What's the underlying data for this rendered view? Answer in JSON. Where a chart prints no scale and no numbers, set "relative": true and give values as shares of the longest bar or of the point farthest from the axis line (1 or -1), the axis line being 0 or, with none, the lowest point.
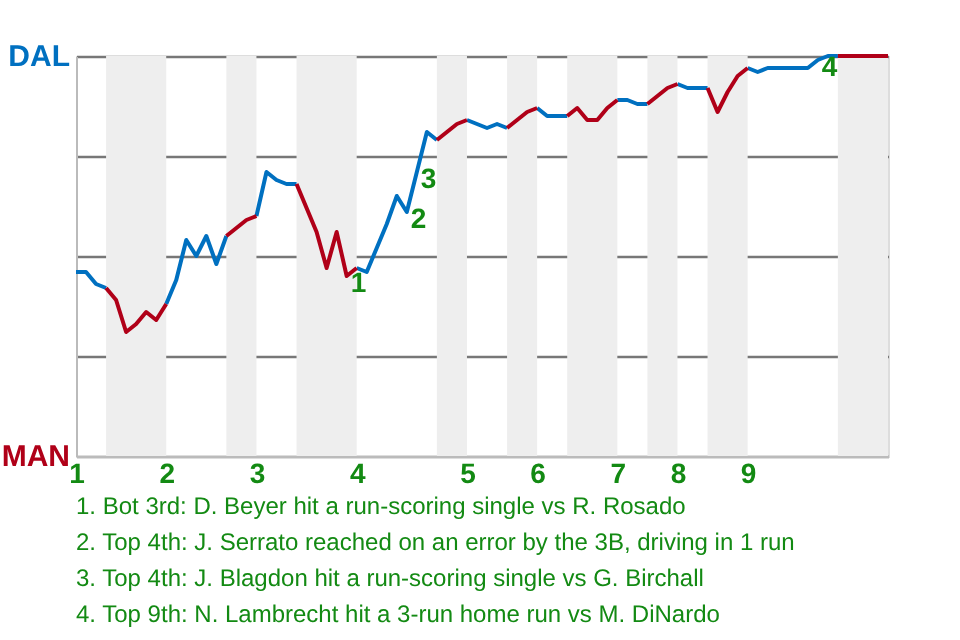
{
  "chart_data": {
    "type": "line",
    "relative": true,
    "categories": [
      "1",
      null,
      null,
      null,
      null,
      null,
      null,
      null,
      null,
      "2",
      null,
      null,
      null,
      null,
      null,
      null,
      null,
      null,
      "3",
      null,
      null,
      null,
      null,
      null,
      null,
      null,
      null,
      null,
      "4",
      null,
      null,
      null,
      null,
      null,
      null,
      null,
      null,
      null,
      null,
      "5",
      null,
      null,
      null,
      null,
      null,
      null,
      "6",
      null,
      null,
      null,
      null,
      null,
      null,
      null,
      "7",
      null,
      null,
      null,
      null,
      null,
      "8",
      null,
      null,
      null,
      null,
      null,
      null,
      "9",
      null,
      null,
      null,
      null,
      null,
      null,
      null,
      null,
      null,
      null,
      null,
      null,
      null,
      null
    ],
    "series": [
      {
        "color": "#0070c0",
        "values": [
          0.46,
          0.46,
          0.43,
          0.42,
          null,
          null,
          null,
          null,
          null,
          0.38,
          0.44,
          0.54,
          0.5,
          0.55,
          0.48,
          0.55,
          null,
          null,
          0.6,
          0.71,
          0.69,
          0.68,
          0.68,
          null,
          null,
          null,
          null,
          null,
          0.47,
          0.46,
          0.52,
          0.58,
          0.65,
          0.61,
          0.71,
          0.81,
          0.79,
          null,
          null,
          0.84,
          0.83,
          0.82,
          0.83,
          0.82,
          null,
          null,
          0.87,
          0.85,
          0.85,
          0.85,
          null,
          null,
          null,
          null,
          0.89,
          0.89,
          0.88,
          0.88,
          null,
          null,
          0.93,
          0.92,
          0.92,
          0.92,
          null,
          null,
          null,
          0.97,
          0.96,
          0.97,
          0.97,
          0.97,
          0.97,
          0.97,
          0.99,
          1,
          1,
          null,
          null,
          null,
          null,
          null
        ]
      },
      {
        "color": "#b00018",
        "values": [
          null,
          null,
          null,
          0.42,
          0.39,
          0.31,
          0.33,
          0.36,
          0.34,
          0.38,
          null,
          null,
          null,
          null,
          null,
          0.55,
          0.57,
          0.59,
          0.6,
          null,
          null,
          null,
          0.68,
          0.62,
          0.56,
          0.47,
          0.56,
          0.45,
          0.47,
          null,
          null,
          null,
          null,
          null,
          null,
          null,
          0.79,
          0.81,
          0.83,
          0.84,
          null,
          null,
          null,
          0.82,
          0.84,
          0.86,
          0.87,
          null,
          null,
          0.85,
          0.87,
          0.84,
          0.84,
          0.87,
          0.89,
          null,
          null,
          0.88,
          0.9,
          0.92,
          0.93,
          null,
          null,
          0.92,
          0.86,
          0.91,
          0.95,
          0.97,
          null,
          null,
          null,
          null,
          null,
          null,
          null,
          null,
          1,
          1,
          1,
          1,
          1,
          1
        ]
      }
    ],
    "grid": "y",
    "line_style": "solid",
    "annotations": [
      "DAL",
      "MAN",
      {
        "text": "1",
        "y": 0.45
      },
      {
        "text": "2",
        "y": 0.61
      },
      {
        "text": "3",
        "y": 0.71
      },
      {
        "text": "4",
        "y": 0.99
      },
      "1. Bot 3rd: D. Beyer hit a run-scoring single vs R. Rosado",
      "2. Top 4th: J. Serrato reached on an error by the 3B, driving in 1 run",
      "3. Top 4th: J. Blagdon hit a run-scoring single vs G. Birchall",
      "4. Top 9th: N. Lambrecht hit a 3-run home run vs M. DiNardo"
    ]
  }
}
